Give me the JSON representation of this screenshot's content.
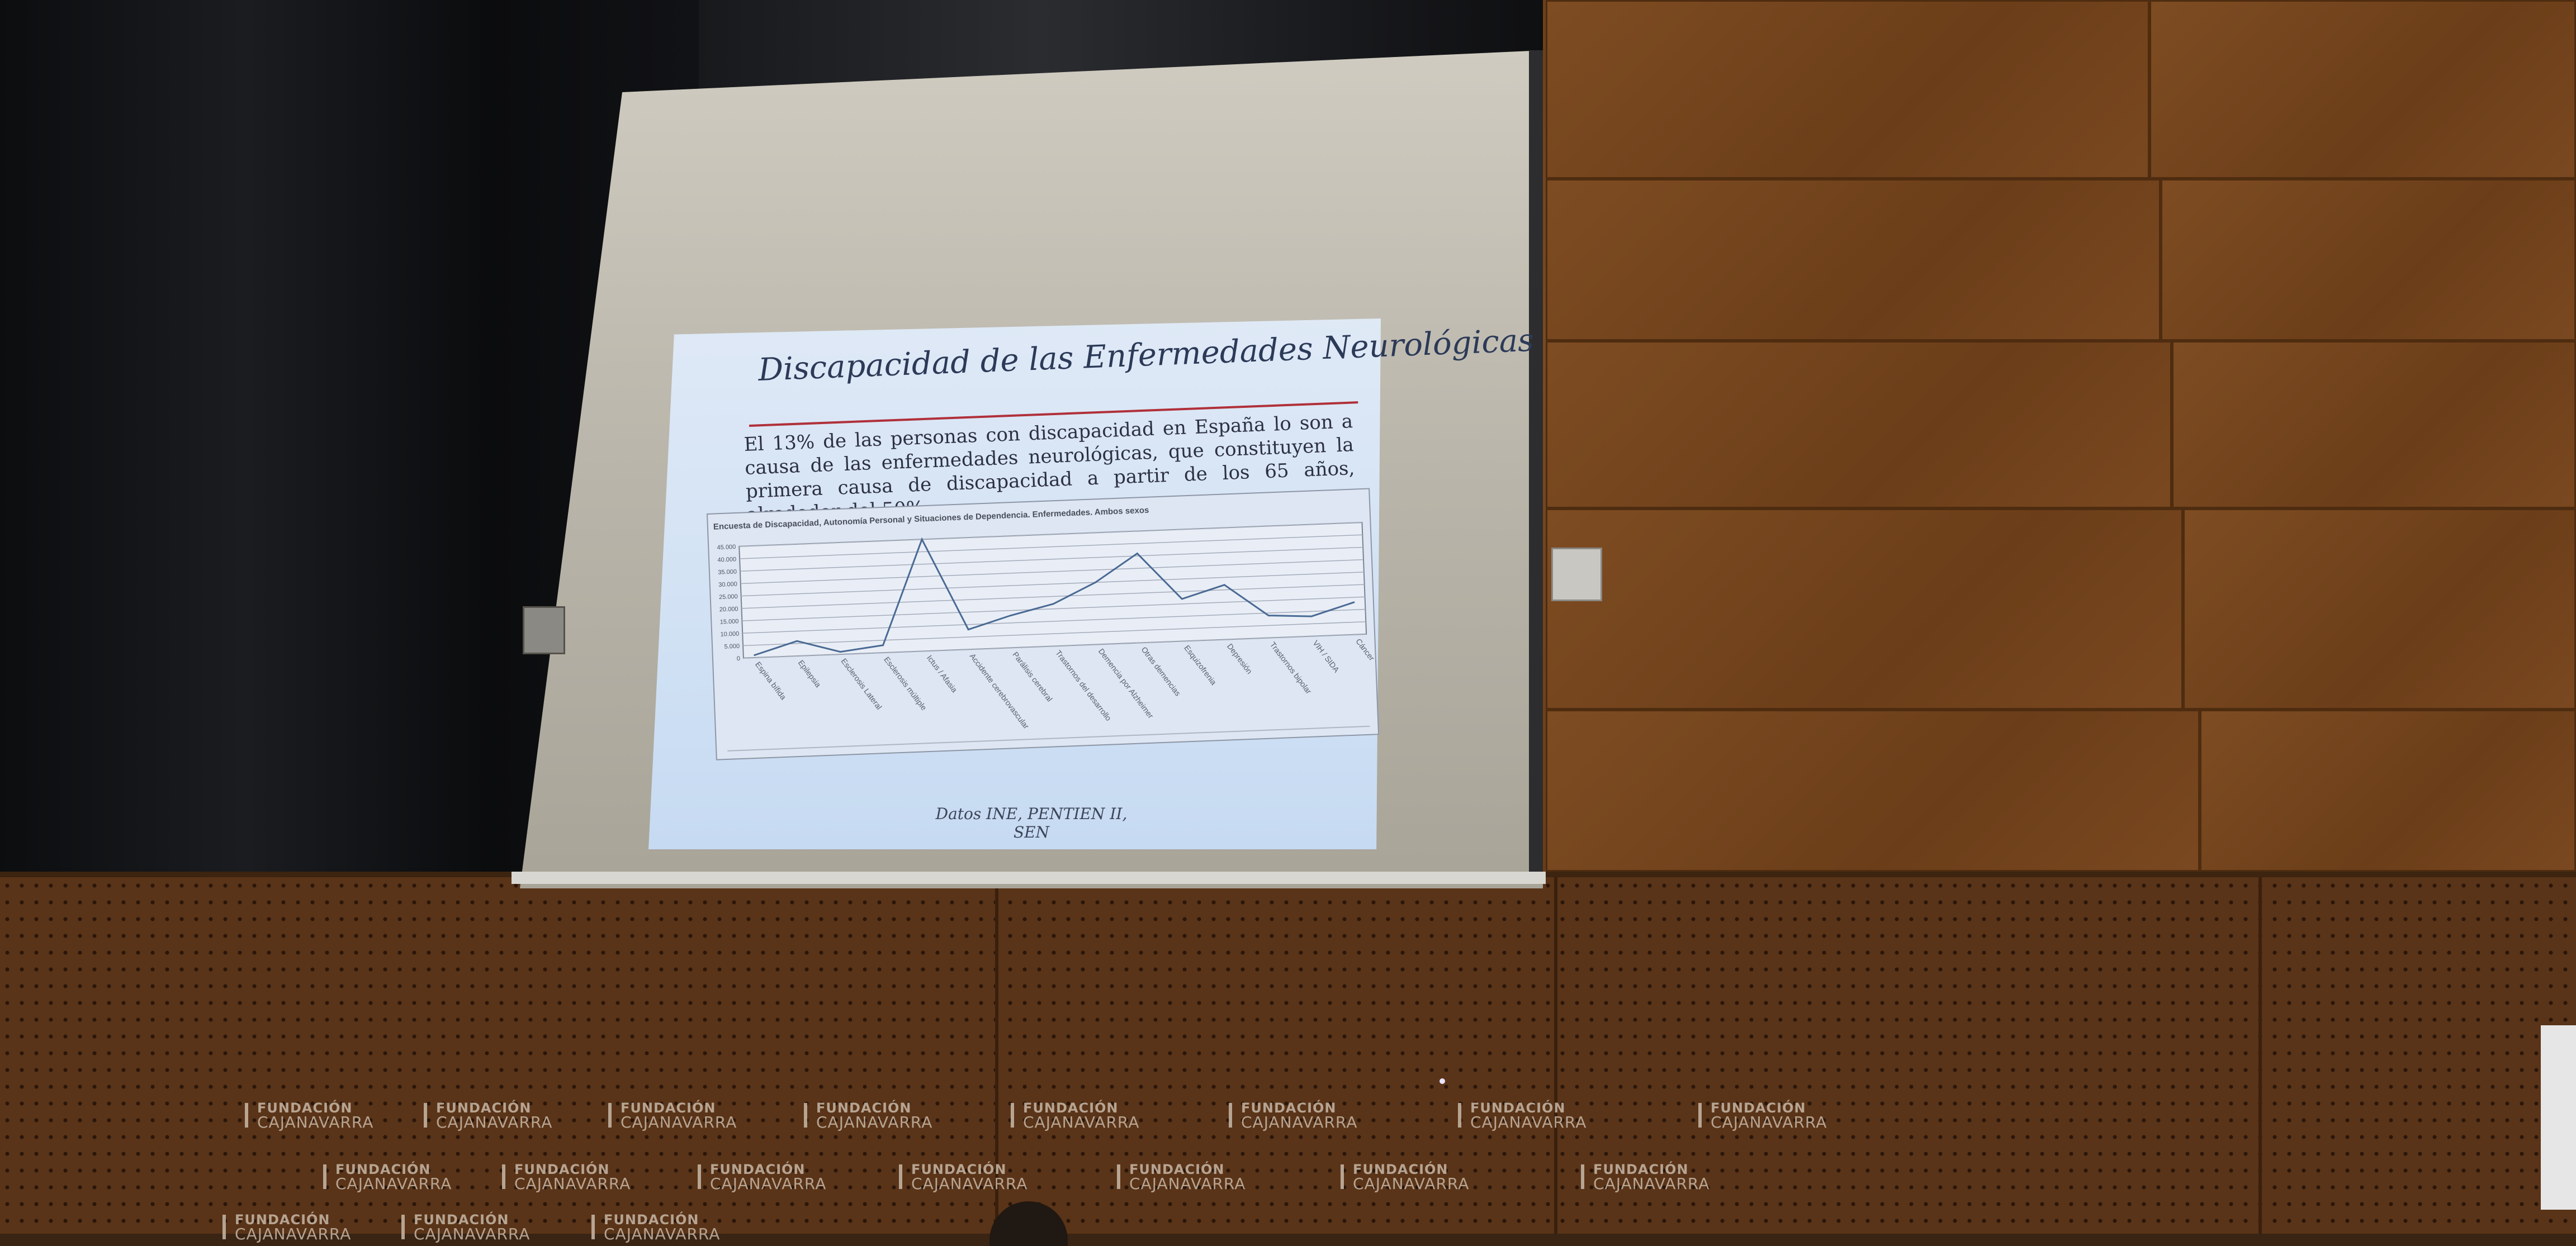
{
  "slide": {
    "title": "Discapacidad de las Enfermedades Neurológicas",
    "body": "El 13% de las personas con discapacidad en España lo son a causa de las enfermedades neurológicas, que constituyen la primera causa de discapacidad a partir de los 65 años, alrededor del 50%.",
    "source": "Datos INE, PENTIEN II, SEN"
  },
  "chart_data": {
    "type": "line",
    "title": "Encuesta de Discapacidad, Autonomía Personal y Situaciones de Dependencia. Enfermedades. Ambos sexos",
    "xlabel": "",
    "ylabel": "",
    "categories": [
      "Espina bífida",
      "Epilepsia",
      "Esclerosis Lateral",
      "Esclerosis múltiple",
      "Ictus / Afasia",
      "Accidente cerebrovascular",
      "Parálisis cerebral",
      "Trastornos del desarrollo",
      "Demencia por Alzheimer",
      "Otras demencias",
      "Esquizofrenia",
      "Depresión",
      "Trastornos bipolar",
      "VIH / SIDA",
      "Cáncer"
    ],
    "y_ticks": [
      "0",
      "5.000",
      "10.000",
      "15.000",
      "20.000",
      "25.000",
      "30.000",
      "35.000",
      "40.000",
      "45.000"
    ],
    "values": [
      1000,
      6000,
      1000,
      3000,
      45000,
      8000,
      13000,
      17000,
      25000,
      36000,
      17000,
      22000,
      9000,
      8000,
      13000
    ],
    "ylim": [
      0,
      45000
    ],
    "grid": true
  },
  "backdrop": {
    "logo_line1": "FUNDACIÓN",
    "logo_line2": "CAJANAVARRA"
  }
}
